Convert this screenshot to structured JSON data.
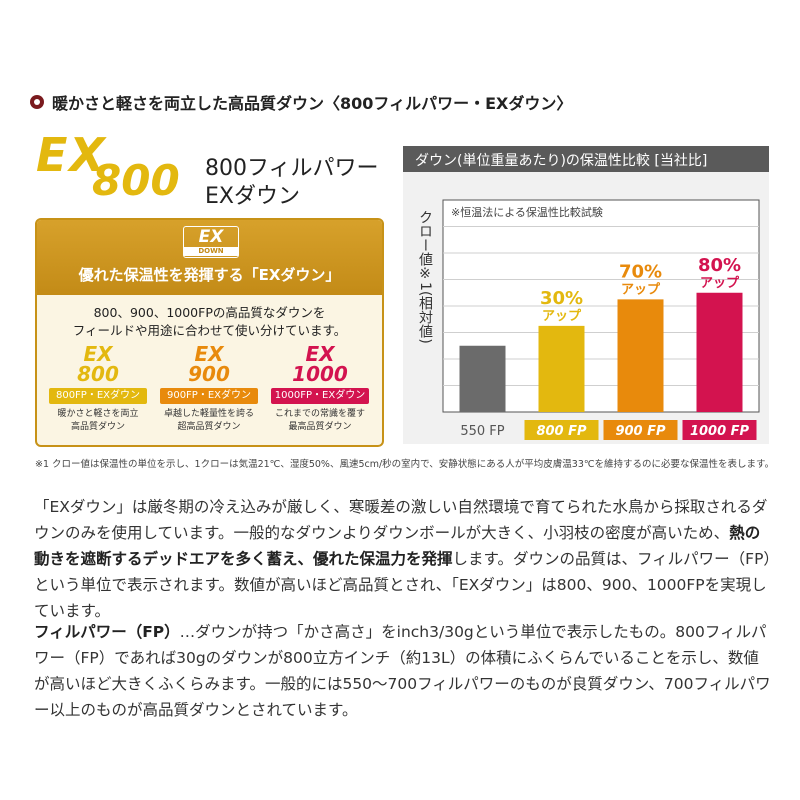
{
  "heading": "暖かさと軽さを両立した高品質ダウン〈800フィルパワー・EXダウン〉",
  "logo": {
    "ex": "EX",
    "number": "800",
    "title_line1": "800フィルパワー",
    "title_line2": "EXダウン"
  },
  "panel": {
    "badge_ex": "EX",
    "badge_down": "DOWN",
    "title": "優れた保温性を発揮する「EXダウン」",
    "desc_line1": "800、900、1000FPの高品質なダウンを",
    "desc_line2": "フィールドや用途に合わせて使い分けています。",
    "variants": [
      {
        "ex": "EX",
        "number": "800",
        "label": "800FP・EXダウン",
        "desc1": "暖かさと軽さを両立",
        "desc2": "高品質ダウン",
        "color": "#e3b80f"
      },
      {
        "ex": "EX",
        "number": "900",
        "label": "900FP・EXダウン",
        "desc1": "卓越した軽量性を誇る",
        "desc2": "超高品質ダウン",
        "color": "#e88a0c"
      },
      {
        "ex": "EX",
        "number": "1000",
        "label": "1000FP・EXダウン",
        "desc1": "これまでの常識を覆す",
        "desc2": "最高品質ダウン",
        "color": "#d3134f"
      }
    ]
  },
  "footnote": "※1 クロー値は保温性の単位を示し、1クローは気温21℃、湿度50%、風速5cm/秒の室内で、安静状態にある人が平均皮膚温33℃を維持するのに必要な保温性を表します。",
  "chart_data": {
    "type": "bar",
    "title": "ダウン(単位重量あたり)の保温性比較",
    "title_note": "[当社比]",
    "note": "※恒温法による保温性比較試験",
    "ylabel": "クロー値※1(相対値)",
    "categories": [
      "550 FP",
      "800 FP",
      "900 FP",
      "1000 FP"
    ],
    "values": [
      100,
      130,
      170,
      180
    ],
    "ylim": [
      0,
      320
    ],
    "grid": true,
    "annotations": [
      {
        "pct": "",
        "text": ""
      },
      {
        "pct": "30%",
        "text": "アップ"
      },
      {
        "pct": "70%",
        "text": "アップ"
      },
      {
        "pct": "80%",
        "text": "アップ"
      }
    ],
    "colors": [
      "#6b6b6b",
      "#e3b80f",
      "#e88a0c",
      "#d3134f"
    ],
    "label_bg": [
      "none",
      "#e3b80f",
      "#e88a0c",
      "#d3134f"
    ]
  },
  "para1": {
    "part1": "「EXダウン」は厳冬期の冷え込みが厳しく、寒暖差の激しい自然環境で育てられた水鳥から採取されるダウンのみを使用しています。一般的なダウンよりダウンボールが大きく、小羽枝の密度が高いため、",
    "bold1": "熱の動きを遮断するデッドエアを多く蓄え、優れた保温力を発揮",
    "part2": "します。ダウンの品質は、フィルパワー（FP）という単位で表示されます。数値が高いほど高品質とされ、「EXダウン」は800、900、1000FPを実現しています。"
  },
  "para2": {
    "bold": "フィルパワー（FP）",
    "text": "…ダウンが持つ「かさ高さ」をinch3/30gという単位で表示したもの。800フィルパワー（FP）であれば30gのダウンが800立方インチ（約13L）の体積にふくらんでいることを示し、数値が高いほど大きくふくらみます。一般的には550～700フィルパワーのものが良質ダウン、700フィルパワー以上のものが高品質ダウンとされています。"
  }
}
